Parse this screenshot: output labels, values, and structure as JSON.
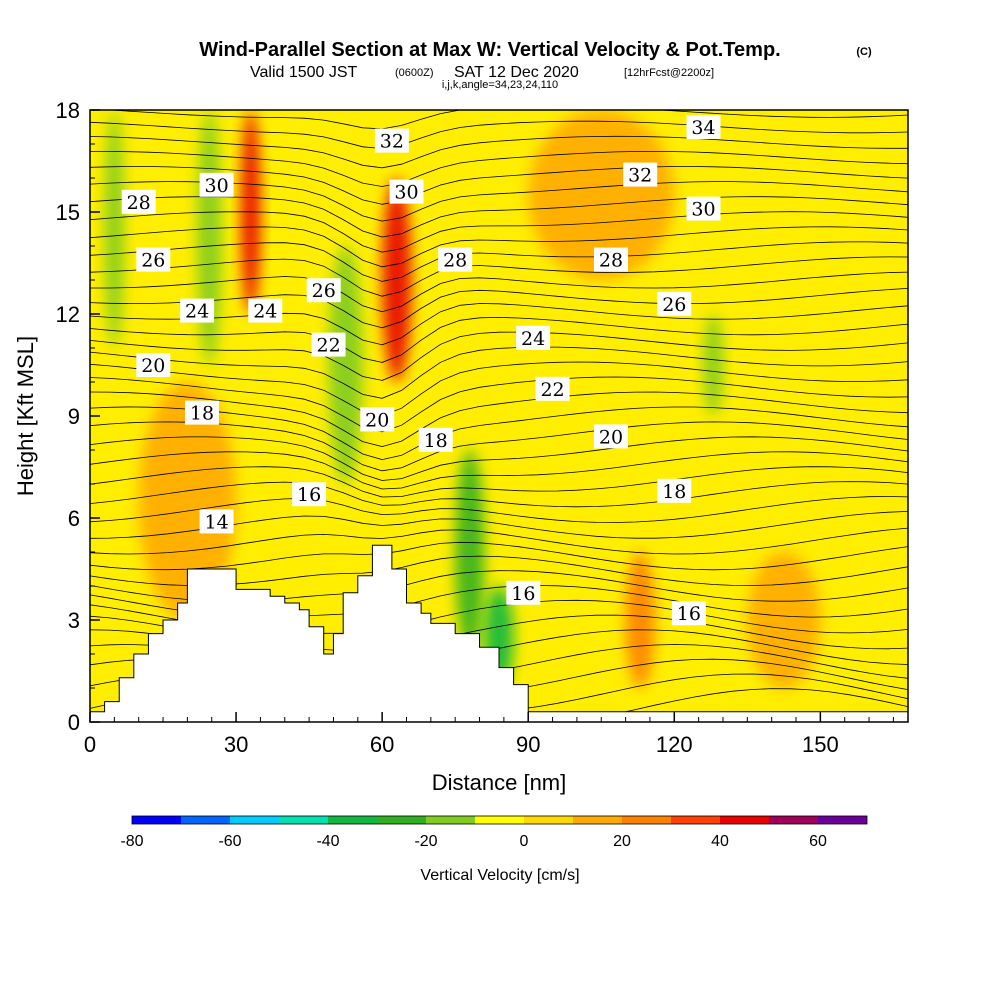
{
  "header": {
    "title": "Wind-Parallel Section at Max W: Vertical Velocity & Pot.Temp.",
    "copyright": "(C)",
    "valid_prefix": "Valid 1500 JST",
    "valid_zulu": "(0600Z)",
    "valid_date": "SAT 12 Dec 2020",
    "forecast_info": "[12hrFcst@2200z]",
    "indices": "i,j,k,angle=34,23,24,110"
  },
  "chart_data": {
    "type": "heatmap",
    "title": "Wind-Parallel Section at Max W: Vertical Velocity & Pot.Temp.",
    "xlabel": "Distance [nm]",
    "ylabel": "Height [Kft MSL]",
    "xlim": [
      0,
      168
    ],
    "ylim": [
      0,
      18
    ],
    "x_ticks": [
      0,
      30,
      60,
      90,
      120,
      150
    ],
    "y_ticks": [
      0,
      3,
      6,
      9,
      12,
      15,
      18
    ],
    "colorbar": {
      "label": "Vertical Velocity [cm/s]",
      "ticks": [
        -80,
        -60,
        -40,
        -20,
        0,
        20,
        40,
        60
      ],
      "levels": [
        -80,
        -70,
        -60,
        -50,
        -40,
        -30,
        -20,
        -10,
        0,
        10,
        20,
        30,
        40,
        50,
        60,
        70
      ],
      "colors": [
        "#0000ff",
        "#0066ff",
        "#00ccff",
        "#00e0b0",
        "#10b840",
        "#30b020",
        "#80cc20",
        "#ffff00",
        "#ffd800",
        "#ffaa00",
        "#ff8000",
        "#ff4000",
        "#e80000",
        "#a0005a",
        "#6a009a"
      ]
    },
    "background_color": "#ffee00",
    "w_features": [
      {
        "x": [
          3,
          7
        ],
        "y": [
          11,
          18
        ],
        "w": -15
      },
      {
        "x": [
          22,
          27
        ],
        "y": [
          10.5,
          18
        ],
        "w": -18
      },
      {
        "x": [
          31,
          35
        ],
        "y": [
          12,
          18
        ],
        "w": 42
      },
      {
        "x": [
          49,
          56
        ],
        "y": [
          7,
          14
        ],
        "w": -20
      },
      {
        "x": [
          60,
          66
        ],
        "y": [
          10,
          16
        ],
        "w": 45
      },
      {
        "x": [
          75,
          81
        ],
        "y": [
          2,
          8
        ],
        "w": -25
      },
      {
        "x": [
          81,
          87
        ],
        "y": [
          1,
          4
        ],
        "w": -32
      },
      {
        "x": [
          126,
          130
        ],
        "y": [
          9,
          12
        ],
        "w": -15
      },
      {
        "x": [
          90,
          120
        ],
        "y": [
          13,
          18
        ],
        "w": 12
      },
      {
        "x": [
          10,
          30
        ],
        "y": [
          3,
          10
        ],
        "w": 14
      },
      {
        "x": [
          110,
          116
        ],
        "y": [
          1,
          5
        ],
        "w": 28
      },
      {
        "x": [
          135,
          150
        ],
        "y": [
          1,
          5
        ],
        "w": 12
      }
    ],
    "terrain": {
      "x": [
        0,
        3,
        3,
        6,
        6,
        9,
        9,
        12,
        12,
        15,
        15,
        18,
        18,
        20,
        20,
        30,
        30,
        37,
        37,
        40,
        40,
        43,
        43,
        45,
        45,
        48,
        48,
        50,
        50,
        52,
        52,
        55,
        55,
        58,
        58,
        62,
        62,
        65,
        65,
        68,
        68,
        70,
        70,
        75,
        75,
        80,
        80,
        84,
        84,
        87,
        87,
        90,
        90,
        100,
        100,
        168
      ],
      "y": [
        0.3,
        0.3,
        0.6,
        0.6,
        1.3,
        1.3,
        2.0,
        2.0,
        2.6,
        2.6,
        3.0,
        3.0,
        3.5,
        3.5,
        4.5,
        4.5,
        3.9,
        3.9,
        3.7,
        3.7,
        3.5,
        3.5,
        3.3,
        3.3,
        2.8,
        2.8,
        2.0,
        2.0,
        2.6,
        2.6,
        3.8,
        3.8,
        4.3,
        4.3,
        5.2,
        5.2,
        4.5,
        4.5,
        3.5,
        3.5,
        3.2,
        3.2,
        2.9,
        2.9,
        2.6,
        2.6,
        2.2,
        2.2,
        1.6,
        1.6,
        1.1,
        1.1,
        0.3,
        0.3,
        0.3,
        0.3
      ]
    },
    "isentrope_labels": [
      {
        "text": "34",
        "x": 126,
        "y": 17.5
      },
      {
        "text": "32",
        "x": 62,
        "y": 17.1
      },
      {
        "text": "32",
        "x": 113,
        "y": 16.1
      },
      {
        "text": "30",
        "x": 26,
        "y": 15.8
      },
      {
        "text": "30",
        "x": 65,
        "y": 15.6
      },
      {
        "text": "30",
        "x": 126,
        "y": 15.1
      },
      {
        "text": "28",
        "x": 10,
        "y": 15.3
      },
      {
        "text": "28",
        "x": 75,
        "y": 13.6
      },
      {
        "text": "28",
        "x": 107,
        "y": 13.6
      },
      {
        "text": "26",
        "x": 13,
        "y": 13.6
      },
      {
        "text": "26",
        "x": 48,
        "y": 12.7
      },
      {
        "text": "26",
        "x": 120,
        "y": 12.3
      },
      {
        "text": "24",
        "x": 22,
        "y": 12.1
      },
      {
        "text": "24",
        "x": 36,
        "y": 12.1
      },
      {
        "text": "24",
        "x": 91,
        "y": 11.3
      },
      {
        "text": "22",
        "x": 49,
        "y": 11.1
      },
      {
        "text": "22",
        "x": 95,
        "y": 9.8
      },
      {
        "text": "20",
        "x": 13,
        "y": 10.5
      },
      {
        "text": "20",
        "x": 59,
        "y": 8.9
      },
      {
        "text": "20",
        "x": 107,
        "y": 8.4
      },
      {
        "text": "18",
        "x": 23,
        "y": 9.1
      },
      {
        "text": "18",
        "x": 71,
        "y": 8.3
      },
      {
        "text": "18",
        "x": 120,
        "y": 6.8
      },
      {
        "text": "16",
        "x": 45,
        "y": 6.7
      },
      {
        "text": "16",
        "x": 89,
        "y": 3.8
      },
      {
        "text": "16",
        "x": 123,
        "y": 3.2
      },
      {
        "text": "14",
        "x": 26,
        "y": 5.9
      }
    ]
  }
}
